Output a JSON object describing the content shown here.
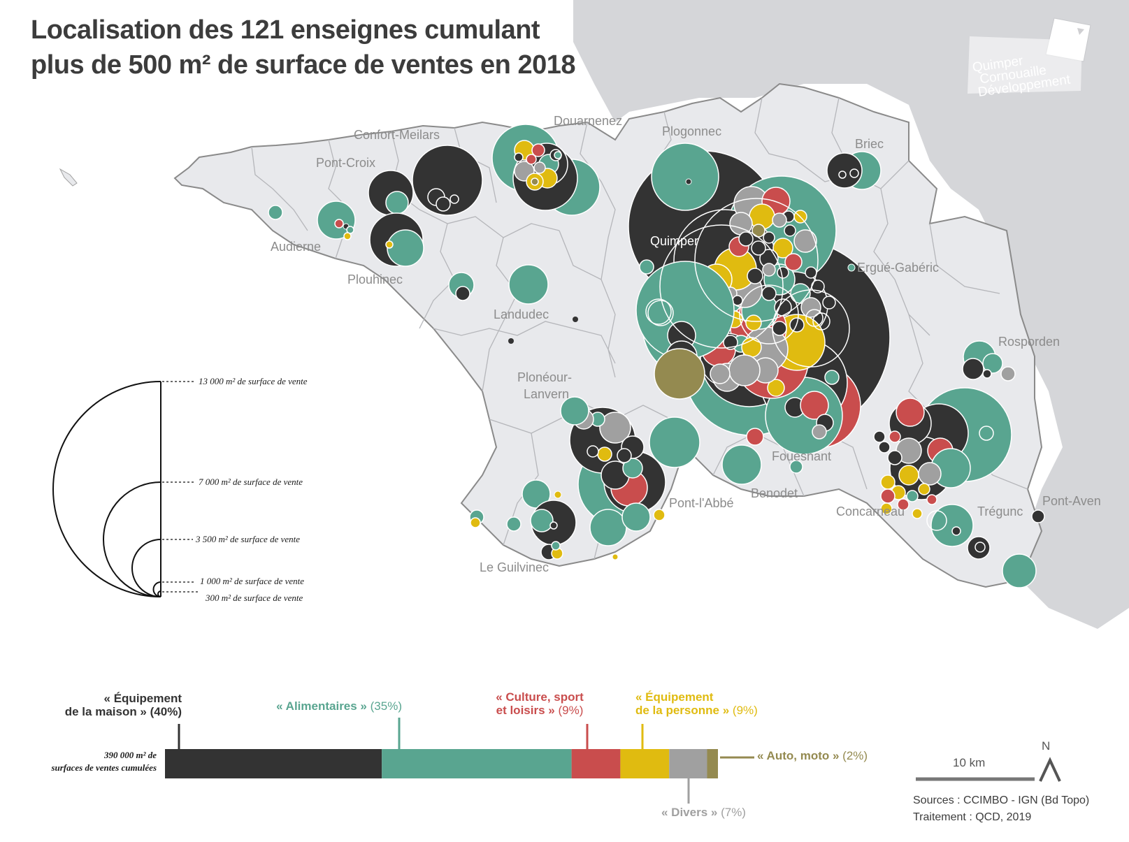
{
  "title": {
    "line1": "Localisation des 121 enseignes cumulant",
    "line2": "plus de 500 m² de surface de ventes en 2018"
  },
  "logo": {
    "line1": "Quimper",
    "line2": "Cornouaille",
    "line3": "Développement"
  },
  "places": {
    "douarnenez": "Douarnenez",
    "plogonnec": "Plogonnec",
    "confort": "Confort-Meilars",
    "pont_croix": "Pont-Croix",
    "briec": "Briec",
    "audierne": "Audierne",
    "quimper": "Quimper",
    "ergue": "Ergué-Gabéric",
    "plouhinec": "Plouhinec",
    "landudec": "Landudec",
    "rosporden": "Rosporden",
    "ploneour1": "Plonéour-",
    "ploneour2": "Lanvern",
    "fouesnant": "Fouesnant",
    "pont_abbe": "Pont-l'Abbé",
    "benodet": "Benodet",
    "pont_aven": "Pont-Aven",
    "concarneau": "Concarneau",
    "tregunc": "Trégunc",
    "guilvinec": "Le Guilvinec"
  },
  "size_legend": {
    "l13000": "13 000 m² de surface de vente",
    "l7000": "7 000 m² de surface de vente",
    "l3500": "3 500 m² de surface de vente",
    "l1000": "1 000 m² de surface de vente",
    "l300": "300 m² de surface de vente"
  },
  "colors": {
    "maison": "#333333",
    "alimentaire": "#59a590",
    "culture": "#c94d4d",
    "personne": "#e0bb10",
    "divers": "#a0a0a0",
    "auto": "#948a50",
    "land": "#e8e9ec",
    "sea": "#d5d6d9",
    "outline": "#8a8a8a"
  },
  "categories": {
    "maison_a": "« Équipement",
    "maison_b": "de la maison »",
    "maison_pct": "(40%)",
    "alim": "« Alimentaires »",
    "alim_pct": "(35%)",
    "culture_a": "« Culture, sport",
    "culture_b": "et loisirs »",
    "culture_pct": "(9%)",
    "personne_a": "« Équipement",
    "personne_b": "de la personne »",
    "personne_pct": "(9%)",
    "auto": "« Auto, moto »",
    "auto_pct": "(2%)",
    "divers": "« Divers »",
    "divers_pct": "(7%)"
  },
  "share_bar": {
    "maison": 40,
    "alimentaire": 35,
    "culture": 9,
    "personne": 9,
    "divers": 7,
    "auto": 2
  },
  "total": {
    "line1": "390 000 m² de",
    "line2": "surfaces de ventes cumulées"
  },
  "scale": "10 km",
  "north": "N",
  "sources": {
    "line1": "Sources : CCIMBO - IGN (Bd Topo)",
    "line2": "Traitement : QCD, 2019"
  }
}
